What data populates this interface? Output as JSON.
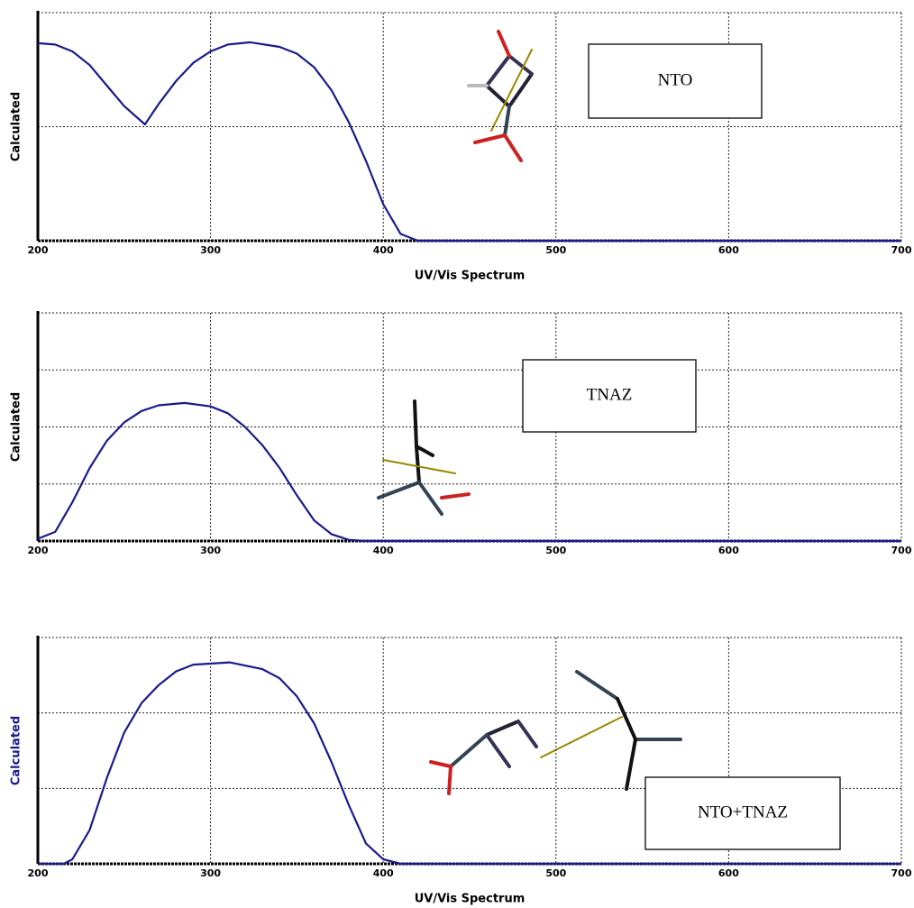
{
  "chart_data": [
    {
      "type": "line",
      "ylabel": "Calculated",
      "xlabel": "UV/Vis Spectrum",
      "annotation": "NTO",
      "ylabel_color": "#000000",
      "xlim": [
        200,
        700
      ],
      "xticks": [
        200,
        300,
        400,
        500,
        600,
        700
      ],
      "ylim": [
        0,
        1
      ],
      "ygrid": [
        0.5,
        1
      ],
      "grid": true,
      "x": [
        200,
        210,
        220,
        230,
        240,
        250,
        262,
        270,
        280,
        290,
        300,
        310,
        323,
        340,
        350,
        360,
        370,
        380,
        390,
        400,
        410,
        420,
        700
      ],
      "series": [
        {
          "name": "NTO",
          "color": "#1a1a8c",
          "values": [
            0.866,
            0.86,
            0.83,
            0.77,
            0.68,
            0.59,
            0.51,
            0.6,
            0.7,
            0.78,
            0.83,
            0.86,
            0.87,
            0.85,
            0.82,
            0.76,
            0.66,
            0.52,
            0.35,
            0.16,
            0.03,
            0,
            0
          ]
        }
      ]
    },
    {
      "type": "line",
      "ylabel": "Calculated",
      "annotation": "TNAZ",
      "ylabel_color": "#000000",
      "xlim": [
        200,
        700
      ],
      "xticks": [
        200,
        300,
        400,
        500,
        600,
        700
      ],
      "ylim": [
        0,
        1
      ],
      "ygrid": [
        0.25,
        0.5,
        0.75,
        1
      ],
      "grid": true,
      "x": [
        200,
        210,
        220,
        230,
        240,
        250,
        260,
        270,
        285,
        300,
        310,
        320,
        330,
        340,
        350,
        360,
        370,
        380,
        390,
        700
      ],
      "series": [
        {
          "name": "TNAZ",
          "color": "#1a1a8c",
          "values": [
            0.01,
            0.04,
            0.17,
            0.32,
            0.44,
            0.52,
            0.57,
            0.595,
            0.605,
            0.59,
            0.56,
            0.5,
            0.42,
            0.32,
            0.2,
            0.09,
            0.03,
            0.005,
            0,
            0
          ]
        }
      ]
    },
    {
      "type": "line",
      "ylabel": "Calculated",
      "xlabel": "UV/Vis Spectrum",
      "annotation": "NTO+TNAZ",
      "ylabel_color": "#1a1a8c",
      "xlim": [
        200,
        700
      ],
      "xticks": [
        200,
        300,
        400,
        500,
        600,
        700
      ],
      "ylim": [
        0,
        1
      ],
      "ygrid": [
        0.333,
        0.667,
        1
      ],
      "grid": true,
      "x": [
        200,
        215,
        220,
        230,
        240,
        250,
        260,
        270,
        280,
        290,
        311,
        330,
        340,
        350,
        360,
        370,
        380,
        390,
        400,
        410,
        700
      ],
      "series": [
        {
          "name": "NTO+TNAZ",
          "color": "#1a1a8c",
          "values": [
            0,
            0,
            0.02,
            0.15,
            0.38,
            0.58,
            0.71,
            0.79,
            0.85,
            0.88,
            0.89,
            0.86,
            0.82,
            0.74,
            0.62,
            0.45,
            0.26,
            0.09,
            0.02,
            0,
            0
          ]
        }
      ]
    }
  ]
}
